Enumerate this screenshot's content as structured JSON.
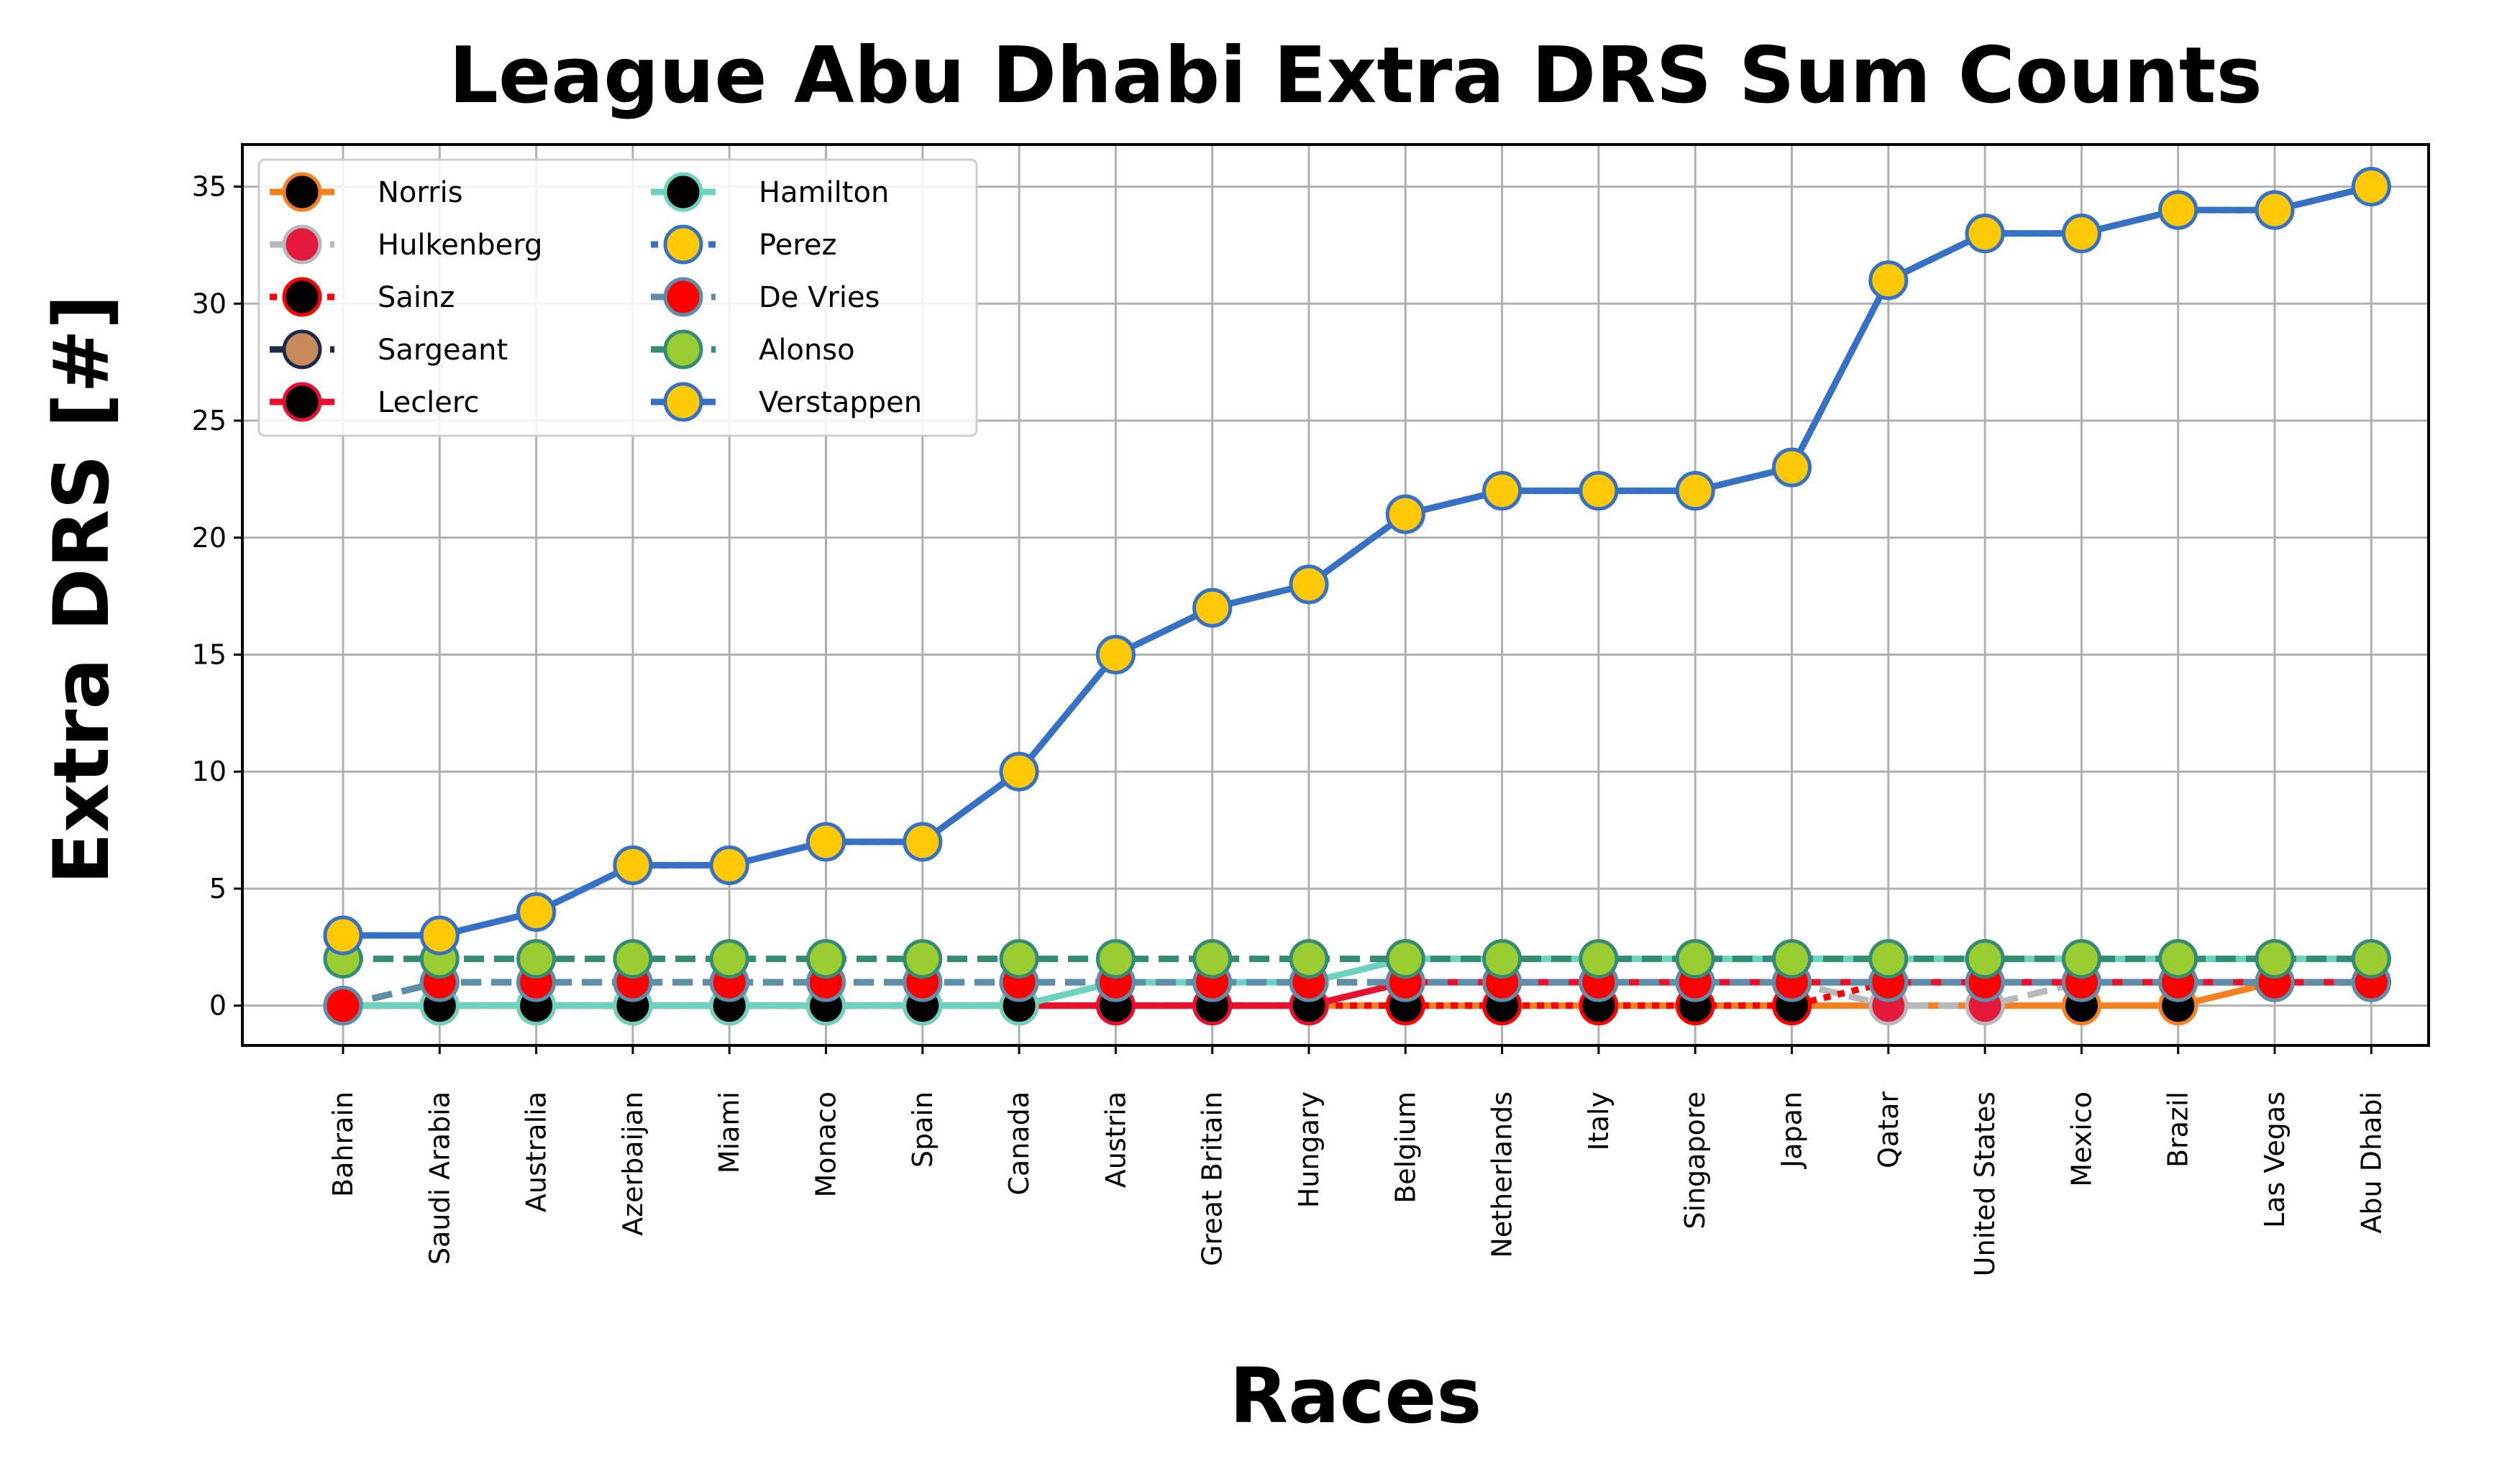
{
  "chart_data": {
    "type": "line",
    "title": "League Abu Dhabi Extra DRS Sum Counts",
    "xlabel": "Races",
    "ylabel": "Extra DRS [#]",
    "ylim": [
      -1.7,
      36.8
    ],
    "yticks": [
      0,
      5,
      10,
      15,
      20,
      25,
      30,
      35
    ],
    "grid": true,
    "legend_placement": "upper-left",
    "categories": [
      "Bahrain",
      "Saudi Arabia",
      "Australia",
      "Azerbaijan",
      "Miami",
      "Monaco",
      "Spain",
      "Canada",
      "Austria",
      "Great Britain",
      "Hungary",
      "Belgium",
      "Netherlands",
      "Italy",
      "Singapore",
      "Japan",
      "Qatar",
      "United States",
      "Mexico",
      "Brazil",
      "Las Vegas",
      "Abu Dhabi"
    ],
    "series": [
      {
        "name": "Norris",
        "color": "#F58020",
        "marker_fill": "#000000",
        "dash": "solid",
        "values": [
          0,
          0,
          0,
          0,
          0,
          0,
          0,
          0,
          0,
          0,
          0,
          0,
          0,
          0,
          0,
          0,
          0,
          0,
          0,
          0,
          1,
          1
        ]
      },
      {
        "name": "Hulkenberg",
        "color": "#B6BABD",
        "marker_fill": "#E41A3C",
        "dash": "dashed",
        "values": [
          0,
          1,
          1,
          1,
          1,
          1,
          1,
          1,
          1,
          1,
          1,
          1,
          1,
          1,
          1,
          1,
          0,
          0,
          1,
          1,
          1,
          1
        ]
      },
      {
        "name": "Sainz",
        "color": "#FF0000",
        "marker_fill": "#000000",
        "dash": "dotted",
        "values": [
          0,
          0,
          0,
          0,
          0,
          0,
          0,
          0,
          0,
          0,
          0,
          0,
          0,
          0,
          0,
          0,
          1,
          1,
          1,
          1,
          1,
          1
        ]
      },
      {
        "name": "Sargeant",
        "color": "#1B2A4A",
        "marker_fill": "#C88A5A",
        "dash": "dashed",
        "values": [
          0,
          1,
          1,
          1,
          1,
          1,
          1,
          1,
          1,
          1,
          1,
          1,
          1,
          1,
          1,
          1,
          1,
          1,
          1,
          1,
          1,
          1
        ]
      },
      {
        "name": "Leclerc",
        "color": "#E8112D",
        "marker_fill": "#000000",
        "dash": "solid",
        "values": [
          0,
          0,
          0,
          0,
          0,
          0,
          0,
          0,
          0,
          0,
          0,
          1,
          1,
          1,
          1,
          1,
          1,
          1,
          1,
          1,
          1,
          1
        ]
      },
      {
        "name": "Hamilton",
        "color": "#6CD3BF",
        "marker_fill": "#000000",
        "dash": "solid",
        "values": [
          0,
          0,
          0,
          0,
          0,
          0,
          0,
          0,
          1,
          1,
          1,
          2,
          2,
          2,
          2,
          2,
          2,
          2,
          2,
          2,
          2,
          2
        ]
      },
      {
        "name": "Perez",
        "color": "#3671C6",
        "marker_fill": "#FFC906",
        "dash": "dotted",
        "values": [
          3,
          3,
          4,
          6,
          6,
          7,
          7,
          10,
          15,
          17,
          18,
          21,
          22,
          22,
          22,
          23,
          31,
          33,
          33,
          34,
          34,
          35
        ]
      },
      {
        "name": "De Vries",
        "color": "#5E8FAA",
        "marker_fill": "#FF0000",
        "dash": "dashed",
        "values": [
          0,
          1,
          1,
          1,
          1,
          1,
          1,
          1,
          1,
          1,
          1,
          1,
          1,
          1,
          1,
          1,
          1,
          1,
          1,
          1,
          1,
          1
        ]
      },
      {
        "name": "Alonso",
        "color": "#358C75",
        "marker_fill": "#9ACD32",
        "dash": "dashed",
        "values": [
          2,
          2,
          2,
          2,
          2,
          2,
          2,
          2,
          2,
          2,
          2,
          2,
          2,
          2,
          2,
          2,
          2,
          2,
          2,
          2,
          2,
          2
        ]
      },
      {
        "name": "Verstappen",
        "color": "#3671C6",
        "marker_fill": "#FFC906",
        "dash": "solid",
        "values": [
          3,
          3,
          4,
          6,
          6,
          7,
          7,
          10,
          15,
          17,
          18,
          21,
          22,
          22,
          22,
          23,
          31,
          33,
          33,
          34,
          34,
          35
        ]
      }
    ]
  }
}
